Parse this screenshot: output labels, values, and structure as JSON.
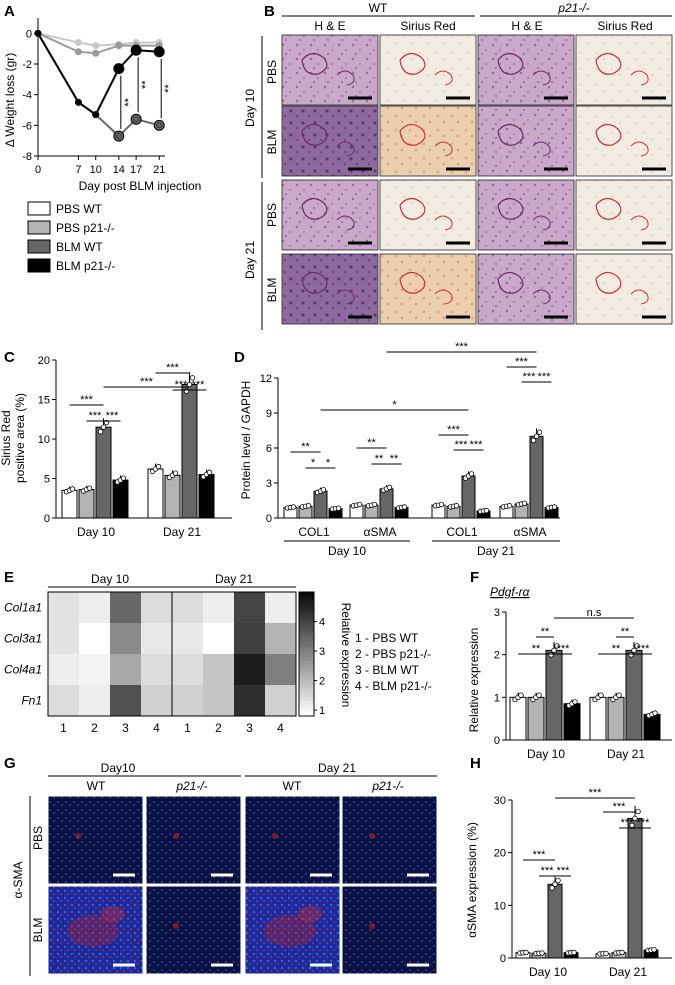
{
  "panels": {
    "A": "A",
    "B": "B",
    "C": "C",
    "D": "D",
    "E": "E",
    "F": "F",
    "G": "G",
    "H": "H"
  },
  "colors": {
    "pbs_wt": "#ffffff",
    "pbs_ko": "#b3b3b3",
    "blm_wt": "#666666",
    "blm_ko": "#000000",
    "he_tissue": "#c9a8c9",
    "he_blm": "#8a5a95",
    "sr_tissue": "#efe6d8",
    "sr_blm": "#e8c9a8",
    "if_blue": "#1c2b8c",
    "if_red": "#c02020"
  },
  "chart_data": [
    {
      "id": "A",
      "type": "line",
      "ylabel": "Δ Weight loss (gr)",
      "xlabel": "Day post BLM injection",
      "x": [
        0,
        7,
        10,
        14,
        17,
        21
      ],
      "xticks": [
        "0",
        "7",
        "10",
        "14",
        "17",
        "21"
      ],
      "ylim": [
        -8,
        1
      ],
      "yticks": [
        "0",
        "-2",
        "-4",
        "-6",
        "-8"
      ],
      "series": [
        {
          "name": "PBS WT",
          "color": "#c8c8c8",
          "values": [
            0,
            -0.6,
            -0.8,
            -0.7,
            -0.6,
            -0.6
          ]
        },
        {
          "name": "PBS p21-/-",
          "color": "#9a9a9a",
          "values": [
            0,
            -1.2,
            -1.3,
            -0.8,
            -0.8,
            -0.8
          ]
        },
        {
          "name": "BLM WT",
          "color": "#666666",
          "values": [
            0,
            -4.5,
            -5.3,
            -6.7,
            -5.6,
            -6.0
          ]
        },
        {
          "name": "BLM p21-/-",
          "color": "#000000",
          "values": [
            0,
            -4.5,
            -5.3,
            -2.3,
            -1.1,
            -1.2
          ]
        }
      ],
      "significance": [
        "**",
        "**",
        "**"
      ]
    },
    {
      "id": "C",
      "type": "bar",
      "ylabel_lines": [
        "Sirius Red",
        "positive area (%)"
      ],
      "categories": [
        "Day 10",
        "Day 21"
      ],
      "ylim": [
        0,
        20
      ],
      "yticks": [
        "0",
        "5",
        "10",
        "15",
        "20"
      ],
      "series": [
        {
          "name": "PBS WT",
          "values": [
            3.5,
            6.2
          ]
        },
        {
          "name": "PBS p21-/-",
          "values": [
            3.6,
            5.4
          ]
        },
        {
          "name": "BLM WT",
          "values": [
            11.5,
            16.9
          ]
        },
        {
          "name": "BLM p21-/-",
          "values": [
            4.8,
            5.5
          ]
        }
      ],
      "significance": [
        "***",
        "***",
        "***",
        "***",
        "***",
        "***",
        "***"
      ]
    },
    {
      "id": "D",
      "type": "bar",
      "ylabel": "Protein level / GAPDH",
      "categories": [
        "COL1",
        "αSMA",
        "COL1",
        "αSMA"
      ],
      "groups": [
        "Day 10",
        "Day 21"
      ],
      "ylim": [
        0,
        12
      ],
      "yticks": [
        "0",
        "3",
        "6",
        "9",
        "12"
      ],
      "series": [
        {
          "name": "PBS WT",
          "values": [
            0.9,
            1.1,
            1.1,
            1.0
          ]
        },
        {
          "name": "PBS p21-/-",
          "values": [
            1.0,
            1.1,
            1.0,
            1.2
          ]
        },
        {
          "name": "BLM WT",
          "values": [
            2.3,
            2.5,
            3.6,
            7.0
          ]
        },
        {
          "name": "BLM p21-/-",
          "values": [
            0.8,
            0.9,
            0.6,
            0.9
          ]
        }
      ],
      "significance": [
        "**",
        "*",
        "*",
        "**",
        "**",
        "**",
        "*",
        "***",
        "***",
        "***",
        "***",
        "***",
        "***",
        "***"
      ]
    },
    {
      "id": "E",
      "type": "heatmap",
      "groups": [
        "Day 10",
        "Day 21"
      ],
      "rows": [
        "Col1a1",
        "Col3a1",
        "Col4a1",
        "Fn1"
      ],
      "cols": [
        "1",
        "2",
        "3",
        "4",
        "1",
        "2",
        "3",
        "4"
      ],
      "values": [
        [
          1.3,
          1.1,
          3.4,
          1.4,
          1.4,
          1.1,
          4.0,
          1.1
        ],
        [
          1.3,
          0.8,
          2.8,
          1.2,
          1.2,
          0.8,
          4.1,
          2.1
        ],
        [
          1.1,
          1.0,
          2.3,
          1.4,
          1.4,
          1.8,
          4.7,
          3.0
        ],
        [
          1.4,
          1.1,
          3.8,
          1.6,
          1.6,
          1.8,
          4.4,
          1.6
        ]
      ],
      "colorbar_label": "Relative expression",
      "colorbar_ticks": [
        "1",
        "2",
        "3",
        "4"
      ],
      "legend": [
        "1 - PBS WT",
        "2 - PBS p21-/-",
        "3 - BLM WT",
        "4 - BLM p21-/-"
      ]
    },
    {
      "id": "F",
      "type": "bar",
      "title": "Pdgf-rα",
      "ylabel": "Relative expression",
      "categories": [
        "Day 10",
        "Day 21"
      ],
      "ylim": [
        0,
        3
      ],
      "yticks": [
        "0",
        "1",
        "2",
        "3"
      ],
      "series": [
        {
          "name": "PBS WT",
          "values": [
            1.0,
            1.0
          ]
        },
        {
          "name": "PBS p21-/-",
          "values": [
            1.0,
            1.0
          ]
        },
        {
          "name": "BLM WT",
          "values": [
            2.1,
            2.1
          ]
        },
        {
          "name": "BLM p21-/-",
          "values": [
            0.85,
            0.6
          ]
        }
      ],
      "significance": [
        "**",
        "**",
        "***",
        "**",
        "**",
        "***",
        "n.s"
      ]
    },
    {
      "id": "H",
      "type": "bar",
      "ylabel": "αSMA expression (%)",
      "categories": [
        "Day 10",
        "Day 21"
      ],
      "ylim": [
        0,
        30
      ],
      "yticks": [
        "0",
        "10",
        "20",
        "30"
      ],
      "series": [
        {
          "name": "PBS WT",
          "values": [
            1.0,
            0.8
          ]
        },
        {
          "name": "PBS p21-/-",
          "values": [
            0.9,
            1.0
          ]
        },
        {
          "name": "BLM WT",
          "values": [
            14.0,
            26.5
          ]
        },
        {
          "name": "BLM p21-/-",
          "values": [
            1.0,
            1.5
          ]
        }
      ],
      "significance": [
        "***",
        "***",
        "***",
        "***",
        "***",
        "***",
        "***"
      ]
    }
  ],
  "legend_A": [
    "PBS WT",
    "PBS p21-/-",
    "BLM WT",
    "BLM p21-/-"
  ],
  "micro_B": {
    "genotypes": [
      "WT",
      "p21-/-"
    ],
    "stains": [
      "H & E",
      "Sirius Red",
      "H & E",
      "Sirius Red"
    ],
    "days": [
      "Day 10",
      "Day 21"
    ],
    "treatments": [
      "PBS",
      "BLM",
      "PBS",
      "BLM"
    ]
  },
  "micro_G": {
    "days": [
      "Day10",
      "Day 21"
    ],
    "genotypes": [
      "WT",
      "p21-/-",
      "WT",
      "p21-/-"
    ],
    "treatments": [
      "PBS",
      "BLM"
    ],
    "marker": "α-SMA"
  }
}
